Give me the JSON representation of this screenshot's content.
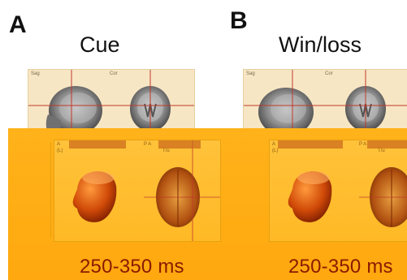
{
  "panels": [
    {
      "letter": "A",
      "title": "Cue",
      "mri_labels": [
        "Sag",
        "Cor"
      ],
      "small_labels": [
        "A",
        "(L)",
        "P A",
        "T/u"
      ],
      "time_window": "250-350 ms"
    },
    {
      "letter": "B",
      "title": "Win/loss",
      "mri_labels": [
        "Sag",
        "Cor"
      ],
      "small_labels": [
        "A",
        "(L)",
        "P A",
        "T/u"
      ],
      "time_window": "250-350 ms"
    }
  ],
  "colors": {
    "orange_band": "#ffad14",
    "mri_panel": "#f7e6c4",
    "time_label": "#8a1a00",
    "crosshair": "#c0392b"
  }
}
